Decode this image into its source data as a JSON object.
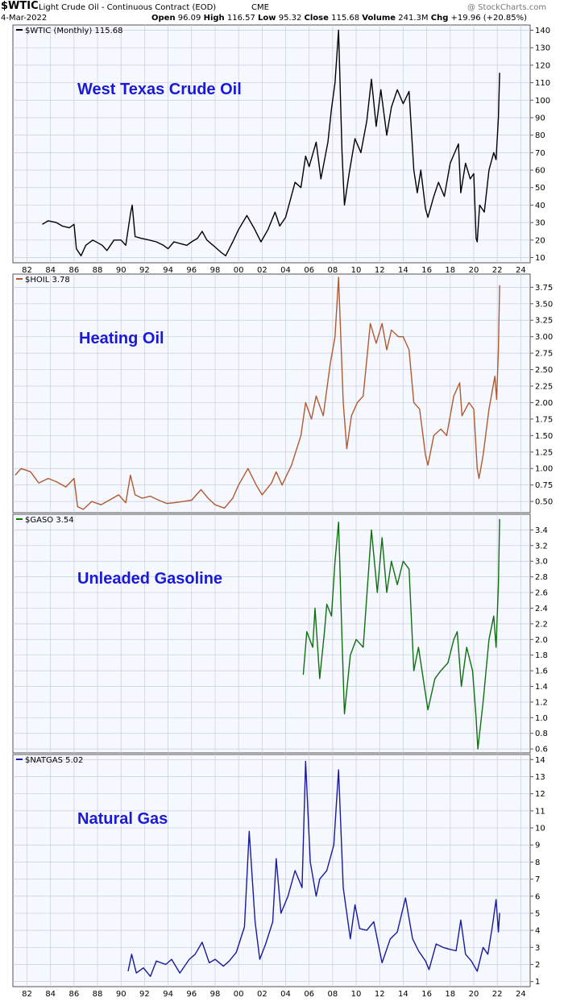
{
  "header": {
    "symbol": "$WTIC",
    "description": "Light Crude Oil - Continuous Contract (EOD)",
    "exchange": "CME",
    "date": "4-Mar-2022",
    "watermark": "@ StockCharts.com",
    "quote": {
      "open_label": "Open",
      "open": "96.09",
      "high_label": "High",
      "high": "116.57",
      "low_label": "Low",
      "low": "95.32",
      "close_label": "Close",
      "close": "115.68",
      "volume_label": "Volume",
      "volume": "241.3M",
      "chg_label": "Chg",
      "chg": "+19.96 (+20.85%)"
    }
  },
  "x_ticks": [
    "82",
    "84",
    "86",
    "88",
    "90",
    "92",
    "94",
    "96",
    "98",
    "00",
    "02",
    "04",
    "06",
    "08",
    "10",
    "12",
    "14",
    "16",
    "18",
    "20",
    "22",
    "24"
  ],
  "chart_data": [
    {
      "type": "line",
      "legend": "$WTIC (Monthly) 115.68",
      "title": "West Texas Crude Oil",
      "color": "#000000",
      "y_ticks": [
        10,
        20,
        30,
        40,
        50,
        60,
        70,
        80,
        90,
        100,
        110,
        120,
        130,
        140
      ],
      "y_tick_labels": [
        "10",
        "20",
        "30",
        "40",
        "50",
        "60",
        "70",
        "80",
        "90",
        "100",
        "110",
        "120",
        "130",
        "140"
      ],
      "ylim": [
        7,
        143
      ],
      "points": [
        [
          1983.3,
          29
        ],
        [
          1983.8,
          31
        ],
        [
          1984.5,
          30
        ],
        [
          1985,
          28
        ],
        [
          1985.6,
          27
        ],
        [
          1986,
          29
        ],
        [
          1986.2,
          15
        ],
        [
          1986.6,
          11
        ],
        [
          1987,
          17
        ],
        [
          1987.6,
          20
        ],
        [
          1988.4,
          17
        ],
        [
          1988.8,
          14
        ],
        [
          1989.4,
          20
        ],
        [
          1990,
          20
        ],
        [
          1990.4,
          17
        ],
        [
          1990.8,
          35
        ],
        [
          1990.95,
          40
        ],
        [
          1991.2,
          22
        ],
        [
          1991.7,
          21
        ],
        [
          1992.4,
          20
        ],
        [
          1993,
          19
        ],
        [
          1993.6,
          17
        ],
        [
          1994,
          15
        ],
        [
          1994.5,
          19
        ],
        [
          1995,
          18
        ],
        [
          1995.6,
          17
        ],
        [
          1996,
          19
        ],
        [
          1996.5,
          21
        ],
        [
          1996.9,
          25
        ],
        [
          1997.3,
          20
        ],
        [
          1998,
          16
        ],
        [
          1998.5,
          13
        ],
        [
          1998.9,
          11
        ],
        [
          1999.5,
          19
        ],
        [
          2000,
          26
        ],
        [
          2000.7,
          34
        ],
        [
          2001.3,
          27
        ],
        [
          2001.9,
          19
        ],
        [
          2002.5,
          26
        ],
        [
          2003.1,
          36
        ],
        [
          2003.5,
          28
        ],
        [
          2004,
          33
        ],
        [
          2004.8,
          53
        ],
        [
          2005.3,
          50
        ],
        [
          2005.7,
          68
        ],
        [
          2006,
          62
        ],
        [
          2006.6,
          76
        ],
        [
          2007,
          55
        ],
        [
          2007.6,
          76
        ],
        [
          2007.9,
          95
        ],
        [
          2008.2,
          110
        ],
        [
          2008.5,
          140
        ],
        [
          2008.8,
          70
        ],
        [
          2009,
          40
        ],
        [
          2009.4,
          58
        ],
        [
          2009.9,
          78
        ],
        [
          2010.4,
          70
        ],
        [
          2010.9,
          88
        ],
        [
          2011.3,
          112
        ],
        [
          2011.7,
          85
        ],
        [
          2012.1,
          106
        ],
        [
          2012.6,
          80
        ],
        [
          2013,
          96
        ],
        [
          2013.5,
          106
        ],
        [
          2014,
          98
        ],
        [
          2014.5,
          105
        ],
        [
          2014.9,
          60
        ],
        [
          2015.2,
          47
        ],
        [
          2015.5,
          60
        ],
        [
          2015.9,
          38
        ],
        [
          2016.1,
          33
        ],
        [
          2016.6,
          45
        ],
        [
          2017,
          53
        ],
        [
          2017.5,
          45
        ],
        [
          2018,
          64
        ],
        [
          2018.7,
          75
        ],
        [
          2018.9,
          47
        ],
        [
          2019.3,
          64
        ],
        [
          2019.7,
          55
        ],
        [
          2020,
          58
        ],
        [
          2020.2,
          21
        ],
        [
          2020.3,
          19
        ],
        [
          2020.5,
          40
        ],
        [
          2020.9,
          36
        ],
        [
          2021.3,
          60
        ],
        [
          2021.7,
          70
        ],
        [
          2021.9,
          66
        ],
        [
          2022.1,
          90
        ],
        [
          2022.2,
          115.68
        ]
      ]
    },
    {
      "type": "line",
      "legend": "$HOIL 3.78",
      "title": "Heating Oil",
      "color": "#b05a30",
      "y_ticks": [
        0.5,
        0.75,
        1.0,
        1.25,
        1.5,
        1.75,
        2.0,
        2.25,
        2.5,
        2.75,
        3.0,
        3.25,
        3.5,
        3.75
      ],
      "y_tick_labels": [
        "0.50",
        "0.75",
        "1.00",
        "1.25",
        "1.50",
        "1.75",
        "2.00",
        "2.25",
        "2.50",
        "2.75",
        "3.00",
        "3.25",
        "3.50",
        "3.75"
      ],
      "ylim": [
        0.33,
        3.95
      ],
      "points": [
        [
          1981,
          0.9
        ],
        [
          1981.5,
          1.0
        ],
        [
          1982.3,
          0.95
        ],
        [
          1983,
          0.78
        ],
        [
          1983.8,
          0.85
        ],
        [
          1984.5,
          0.8
        ],
        [
          1985.3,
          0.72
        ],
        [
          1986,
          0.85
        ],
        [
          1986.3,
          0.42
        ],
        [
          1986.8,
          0.38
        ],
        [
          1987.5,
          0.5
        ],
        [
          1988.3,
          0.45
        ],
        [
          1989,
          0.52
        ],
        [
          1989.8,
          0.6
        ],
        [
          1990.4,
          0.48
        ],
        [
          1990.8,
          0.9
        ],
        [
          1991.2,
          0.6
        ],
        [
          1991.8,
          0.55
        ],
        [
          1992.5,
          0.58
        ],
        [
          1993.2,
          0.52
        ],
        [
          1993.9,
          0.47
        ],
        [
          1994.5,
          0.48
        ],
        [
          1995.3,
          0.5
        ],
        [
          1996,
          0.52
        ],
        [
          1996.8,
          0.68
        ],
        [
          1997.4,
          0.55
        ],
        [
          1998,
          0.45
        ],
        [
          1998.8,
          0.4
        ],
        [
          1999.5,
          0.55
        ],
        [
          2000,
          0.75
        ],
        [
          2000.8,
          1.0
        ],
        [
          2001.5,
          0.75
        ],
        [
          2002,
          0.6
        ],
        [
          2002.8,
          0.78
        ],
        [
          2003.2,
          0.95
        ],
        [
          2003.7,
          0.75
        ],
        [
          2004.5,
          1.05
        ],
        [
          2005.3,
          1.5
        ],
        [
          2005.7,
          2.0
        ],
        [
          2006.2,
          1.75
        ],
        [
          2006.6,
          2.1
        ],
        [
          2007.2,
          1.8
        ],
        [
          2007.8,
          2.6
        ],
        [
          2008.2,
          3.0
        ],
        [
          2008.5,
          3.9
        ],
        [
          2008.9,
          2.0
        ],
        [
          2009.2,
          1.3
        ],
        [
          2009.6,
          1.8
        ],
        [
          2010.1,
          2.0
        ],
        [
          2010.6,
          2.1
        ],
        [
          2011.2,
          3.2
        ],
        [
          2011.7,
          2.9
        ],
        [
          2012.2,
          3.2
        ],
        [
          2012.6,
          2.8
        ],
        [
          2013,
          3.1
        ],
        [
          2013.6,
          3.0
        ],
        [
          2014,
          3.0
        ],
        [
          2014.5,
          2.8
        ],
        [
          2014.9,
          2.0
        ],
        [
          2015.4,
          1.9
        ],
        [
          2015.9,
          1.2
        ],
        [
          2016.1,
          1.05
        ],
        [
          2016.6,
          1.5
        ],
        [
          2017.2,
          1.6
        ],
        [
          2017.7,
          1.5
        ],
        [
          2018.3,
          2.1
        ],
        [
          2018.8,
          2.3
        ],
        [
          2019,
          1.8
        ],
        [
          2019.6,
          2.0
        ],
        [
          2020,
          1.9
        ],
        [
          2020.3,
          1.0
        ],
        [
          2020.45,
          0.85
        ],
        [
          2020.8,
          1.2
        ],
        [
          2021.3,
          1.9
        ],
        [
          2021.8,
          2.4
        ],
        [
          2021.95,
          2.05
        ],
        [
          2022.1,
          2.8
        ],
        [
          2022.2,
          3.78
        ]
      ]
    },
    {
      "type": "line",
      "legend": "$GASO 3.54",
      "title": "Unleaded Gasoline",
      "color": "#107010",
      "y_ticks": [
        0.6,
        0.8,
        1.0,
        1.2,
        1.4,
        1.6,
        1.8,
        2.0,
        2.2,
        2.4,
        2.6,
        2.8,
        3.0,
        3.2,
        3.4
      ],
      "y_tick_labels": [
        "0.6",
        "0.8",
        "1.0",
        "1.2",
        "1.4",
        "1.6",
        "1.8",
        "2.0",
        "2.2",
        "2.4",
        "2.6",
        "2.8",
        "3.0",
        "3.2",
        "3.4"
      ],
      "ylim": [
        0.55,
        3.6
      ],
      "points": [
        [
          2005.5,
          1.55
        ],
        [
          2005.8,
          2.1
        ],
        [
          2006.3,
          1.9
        ],
        [
          2006.5,
          2.4
        ],
        [
          2006.9,
          1.5
        ],
        [
          2007.3,
          2.1
        ],
        [
          2007.5,
          2.45
        ],
        [
          2007.9,
          2.3
        ],
        [
          2008.2,
          3.0
        ],
        [
          2008.5,
          3.5
        ],
        [
          2008.8,
          2.0
        ],
        [
          2009,
          1.05
        ],
        [
          2009.5,
          1.8
        ],
        [
          2010,
          2.0
        ],
        [
          2010.6,
          1.9
        ],
        [
          2011.3,
          3.4
        ],
        [
          2011.8,
          2.6
        ],
        [
          2012.2,
          3.3
        ],
        [
          2012.6,
          2.6
        ],
        [
          2013,
          3.0
        ],
        [
          2013.5,
          2.7
        ],
        [
          2014,
          3.0
        ],
        [
          2014.5,
          2.9
        ],
        [
          2014.9,
          1.6
        ],
        [
          2015.3,
          1.9
        ],
        [
          2015.8,
          1.4
        ],
        [
          2016.1,
          1.1
        ],
        [
          2016.7,
          1.5
        ],
        [
          2017.2,
          1.6
        ],
        [
          2017.8,
          1.7
        ],
        [
          2018.3,
          2.0
        ],
        [
          2018.6,
          2.1
        ],
        [
          2018.95,
          1.4
        ],
        [
          2019.4,
          1.9
        ],
        [
          2019.9,
          1.6
        ],
        [
          2020.2,
          1.0
        ],
        [
          2020.35,
          0.6
        ],
        [
          2020.8,
          1.2
        ],
        [
          2021.3,
          2.0
        ],
        [
          2021.7,
          2.3
        ],
        [
          2021.9,
          1.9
        ],
        [
          2022.1,
          2.7
        ],
        [
          2022.2,
          3.54
        ]
      ]
    },
    {
      "type": "line",
      "legend": "$NATGAS 5.02",
      "title": "Natural Gas",
      "color": "#1a1a9a",
      "y_ticks": [
        1,
        2,
        3,
        4,
        5,
        6,
        7,
        8,
        9,
        10,
        11,
        12,
        13,
        14
      ],
      "y_tick_labels": [
        "1",
        "2",
        "3",
        "4",
        "5",
        "6",
        "7",
        "8",
        "9",
        "10",
        "11",
        "12",
        "13",
        "14"
      ],
      "ylim": [
        0.7,
        14.3
      ],
      "points": [
        [
          1990.6,
          1.6
        ],
        [
          1990.9,
          2.6
        ],
        [
          1991.3,
          1.5
        ],
        [
          1991.9,
          1.8
        ],
        [
          1992.5,
          1.3
        ],
        [
          1993,
          2.2
        ],
        [
          1993.8,
          2.0
        ],
        [
          1994.3,
          2.3
        ],
        [
          1995,
          1.5
        ],
        [
          1995.8,
          2.3
        ],
        [
          1996.3,
          2.6
        ],
        [
          1996.9,
          3.3
        ],
        [
          1997.5,
          2.1
        ],
        [
          1998,
          2.3
        ],
        [
          1998.7,
          1.9
        ],
        [
          1999.2,
          2.2
        ],
        [
          1999.8,
          2.7
        ],
        [
          2000.5,
          4.2
        ],
        [
          2000.9,
          9.8
        ],
        [
          2001.4,
          4.5
        ],
        [
          2001.8,
          2.3
        ],
        [
          2002.3,
          3.2
        ],
        [
          2002.9,
          4.5
        ],
        [
          2003.2,
          8.2
        ],
        [
          2003.6,
          5.0
        ],
        [
          2004.2,
          6.0
        ],
        [
          2004.8,
          7.5
        ],
        [
          2005.4,
          6.5
        ],
        [
          2005.7,
          13.9
        ],
        [
          2006.1,
          8.0
        ],
        [
          2006.6,
          6.0
        ],
        [
          2006.9,
          7.0
        ],
        [
          2007.5,
          7.5
        ],
        [
          2008.1,
          9.0
        ],
        [
          2008.5,
          13.4
        ],
        [
          2008.9,
          6.5
        ],
        [
          2009.5,
          3.5
        ],
        [
          2009.9,
          5.5
        ],
        [
          2010.3,
          4.1
        ],
        [
          2010.9,
          4.0
        ],
        [
          2011.5,
          4.5
        ],
        [
          2012.2,
          2.1
        ],
        [
          2012.9,
          3.5
        ],
        [
          2013.5,
          3.9
        ],
        [
          2014.2,
          5.9
        ],
        [
          2014.8,
          3.5
        ],
        [
          2015.3,
          2.8
        ],
        [
          2015.9,
          2.2
        ],
        [
          2016.2,
          1.7
        ],
        [
          2016.8,
          3.2
        ],
        [
          2017.4,
          3.0
        ],
        [
          2017.9,
          2.9
        ],
        [
          2018.5,
          2.8
        ],
        [
          2018.9,
          4.6
        ],
        [
          2019.3,
          2.6
        ],
        [
          2019.8,
          2.2
        ],
        [
          2020.3,
          1.6
        ],
        [
          2020.8,
          3.0
        ],
        [
          2021.2,
          2.6
        ],
        [
          2021.6,
          4.3
        ],
        [
          2021.9,
          5.8
        ],
        [
          2022.1,
          3.9
        ],
        [
          2022.2,
          5.02
        ]
      ]
    }
  ]
}
